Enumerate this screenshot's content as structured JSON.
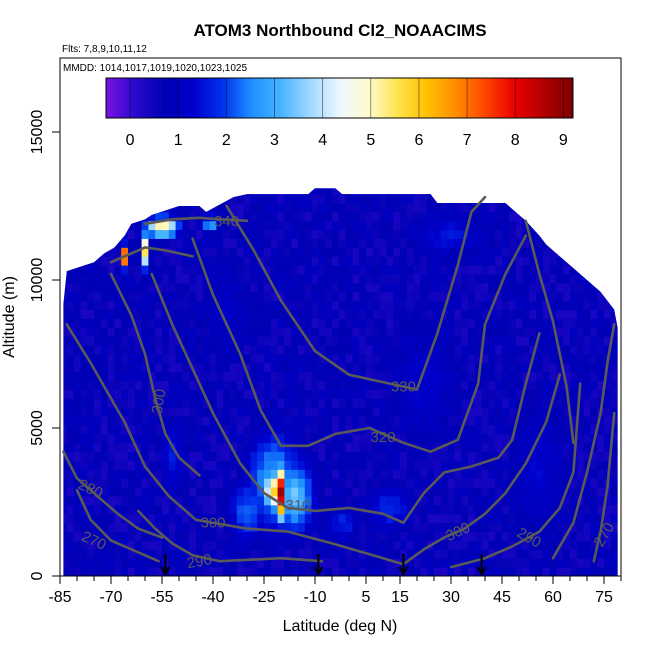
{
  "chart_data": {
    "type": "heatmap",
    "title": "ATOM3 Northbound Cl2_NOAACIMS",
    "subtitle_flights": "Flts: 7,8,9,10,11,12",
    "subtitle_dates": "MMDD: 1014,1017,1019,1020,1023,1025",
    "xlabel": "Latitude (deg N)",
    "ylabel": "Altitude (m)",
    "xlim": [
      -85,
      80
    ],
    "ylim": [
      0,
      17500
    ],
    "x_ticks": [
      -85,
      -70,
      -55,
      -40,
      -25,
      -10,
      5,
      15,
      30,
      45,
      60,
      75
    ],
    "x_tick_labels": [
      "-85",
      "-70",
      "-55",
      "-40",
      "-25",
      "-10",
      "5",
      "15",
      "30",
      "45",
      "60",
      "75"
    ],
    "y_ticks": [
      0,
      5000,
      10000,
      15000
    ],
    "y_tick_labels": [
      "0",
      "5000",
      "10000",
      "15000"
    ],
    "colorbar": {
      "min": -0.5,
      "max": 9.2,
      "ticks": [
        0,
        1,
        2,
        3,
        4,
        5,
        6,
        7,
        8,
        9
      ],
      "tick_labels": [
        "0",
        "1",
        "2",
        "3",
        "4",
        "5",
        "6",
        "7",
        "8",
        "9"
      ],
      "colors": [
        "#7a12e0",
        "#2a0acf",
        "#0000b3",
        "#0000cc",
        "#0033ee",
        "#1e90ff",
        "#48b4ff",
        "#9fd8ff",
        "#eef7ff",
        "#fffad0",
        "#ffe44d",
        "#ffc000",
        "#ff8c00",
        "#ff4500",
        "#e80000",
        "#b30000",
        "#7a0000"
      ]
    },
    "cell_width_deg": 2,
    "cell_height_m": 300,
    "background_value": 0.7,
    "domain_top": [
      [
        -84,
        9200
      ],
      [
        -83,
        10300
      ],
      [
        -75,
        10600
      ],
      [
        -72,
        10900
      ],
      [
        -69,
        11100
      ],
      [
        -66,
        11500
      ],
      [
        -64,
        11900
      ],
      [
        -60,
        12050
      ],
      [
        -58,
        12200
      ],
      [
        -50,
        12500
      ],
      [
        -44,
        12500
      ],
      [
        -42,
        12300
      ],
      [
        -34,
        12800
      ],
      [
        -30,
        12900
      ],
      [
        -12,
        12900
      ],
      [
        -10,
        13100
      ],
      [
        -4,
        13100
      ],
      [
        -2,
        12900
      ],
      [
        24,
        12900
      ],
      [
        26,
        12600
      ],
      [
        46,
        12600
      ],
      [
        48,
        12400
      ],
      [
        52,
        12000
      ],
      [
        56,
        11500
      ],
      [
        58,
        11200
      ],
      [
        62,
        10800
      ],
      [
        66,
        10400
      ],
      [
        70,
        10000
      ],
      [
        74,
        9600
      ],
      [
        78,
        9000
      ],
      [
        79,
        8400
      ],
      [
        79,
        0
      ]
    ],
    "hotspots": [
      {
        "lat": -66,
        "alt": 10800,
        "dlat": 1.2,
        "dalt": 350,
        "value": 8.5
      },
      {
        "lat": -60,
        "alt": 11000,
        "dlat": 1.5,
        "dalt": 600,
        "value": 5.5
      },
      {
        "lat": -55,
        "alt": 11800,
        "dlat": 5,
        "dalt": 350,
        "value": 5.4
      },
      {
        "lat": -41,
        "alt": 11900,
        "dlat": 3,
        "dalt": 300,
        "value": 2.8
      },
      {
        "lat": -20,
        "alt": 2800,
        "dlat": 1.5,
        "dalt": 900,
        "value": 8.8
      },
      {
        "lat": -22,
        "alt": 2900,
        "dlat": 3.5,
        "dalt": 700,
        "value": 5.8
      },
      {
        "lat": -22,
        "alt": 3200,
        "dlat": 9,
        "dalt": 1900,
        "value": 2.8
      },
      {
        "lat": -16,
        "alt": 2700,
        "dlat": 6,
        "dalt": 1300,
        "value": 3.4
      },
      {
        "lat": -30,
        "alt": 2200,
        "dlat": 6,
        "dalt": 1200,
        "value": 2.2
      },
      {
        "lat": 12,
        "alt": 2300,
        "dlat": 8,
        "dalt": 900,
        "value": 1.8
      },
      {
        "lat": -52,
        "alt": 4000,
        "dlat": 4,
        "dalt": 1500,
        "value": 1.6
      },
      {
        "lat": -2,
        "alt": 1800,
        "dlat": 6,
        "dalt": 700,
        "value": 1.7
      },
      {
        "lat": 22,
        "alt": 6500,
        "dlat": 12,
        "dalt": 2500,
        "value": 1.3
      },
      {
        "lat": 56,
        "alt": 3500,
        "dlat": 10,
        "dalt": 3000,
        "value": 1.3
      },
      {
        "lat": 30,
        "alt": 11500,
        "dlat": 14,
        "dalt": 900,
        "value": 1.5
      },
      {
        "lat": -36,
        "alt": 9000,
        "dlat": 8,
        "dalt": 2000,
        "value": 1.2
      },
      {
        "lat": 70,
        "alt": 6500,
        "dlat": 4,
        "dalt": 1500,
        "value": 0.2
      },
      {
        "lat": -82,
        "alt": 8200,
        "dlat": 2,
        "dalt": 1000,
        "value": 0.4
      }
    ],
    "contours": [
      {
        "label": "270",
        "label_at": [
          -75,
          1200
        ],
        "label_rot": 25,
        "points": [
          [
            -80,
            2900
          ],
          [
            -76,
            1900
          ],
          [
            -70,
            1200
          ],
          [
            -62,
            800
          ],
          [
            -56,
            500
          ]
        ]
      },
      {
        "label": "280",
        "label_at": [
          -76,
          2950
        ],
        "label_rot": 25,
        "points": [
          [
            -84,
            4200
          ],
          [
            -80,
            3300
          ],
          [
            -74,
            2700
          ],
          [
            -68,
            2100
          ],
          [
            -62,
            1600
          ],
          [
            -55,
            1300
          ]
        ]
      },
      {
        "label": "290",
        "label_at": [
          -44,
          500
        ],
        "label_rot": -10,
        "points": [
          [
            -62,
            2200
          ],
          [
            -57,
            1600
          ],
          [
            -52,
            1100
          ],
          [
            -46,
            700
          ],
          [
            -38,
            500
          ],
          [
            -20,
            600
          ],
          [
            -8,
            500
          ]
        ]
      },
      {
        "label": "290",
        "label_at": [
          53,
          1300
        ],
        "label_rot": 30,
        "points": [
          [
            30,
            300
          ],
          [
            40,
            600
          ],
          [
            48,
            1000
          ],
          [
            56,
            1500
          ],
          [
            62,
            2300
          ],
          [
            66,
            3500
          ],
          [
            68,
            6500
          ]
        ]
      },
      {
        "label": "270",
        "label_at": [
          75,
          1400
        ],
        "label_rot": -60,
        "points": [
          [
            72,
            500
          ],
          [
            74,
            1500
          ],
          [
            76,
            3000
          ],
          [
            78,
            5500
          ]
        ]
      },
      {
        "label": "300",
        "label_at": [
          -40,
          1800
        ],
        "label_rot": 0,
        "points": [
          [
            -83,
            8500
          ],
          [
            -76,
            7200
          ],
          [
            -66,
            5200
          ],
          [
            -60,
            3700
          ],
          [
            -53,
            2700
          ],
          [
            -45,
            1900
          ],
          [
            -30,
            1600
          ],
          [
            -18,
            1500
          ],
          [
            -5,
            1100
          ],
          [
            10,
            600
          ],
          [
            16,
            400
          ],
          [
            22,
            900
          ],
          [
            28,
            1300
          ],
          [
            34,
            1600
          ]
        ]
      },
      {
        "label": "300",
        "label_at": [
          -56,
          5900
        ],
        "label_rot": -80,
        "points": [
          [
            -70,
            10200
          ],
          [
            -64,
            8800
          ],
          [
            -60,
            7500
          ],
          [
            -57,
            6000
          ],
          [
            -54,
            4800
          ],
          [
            -50,
            4000
          ],
          [
            -44,
            3400
          ]
        ]
      },
      {
        "label": "300",
        "label_at": [
          32,
          1500
        ],
        "label_rot": -25,
        "points": [
          [
            34,
            1600
          ],
          [
            40,
            2100
          ],
          [
            46,
            2800
          ],
          [
            52,
            3800
          ],
          [
            58,
            5200
          ],
          [
            62,
            6800
          ]
        ]
      },
      {
        "label": "310",
        "label_at": [
          -15,
          2400
        ],
        "label_rot": 0,
        "points": [
          [
            -58,
            10200
          ],
          [
            -52,
            8500
          ],
          [
            -46,
            7000
          ],
          [
            -40,
            5500
          ],
          [
            -32,
            3800
          ],
          [
            -25,
            2800
          ],
          [
            -18,
            2300
          ],
          [
            -10,
            2200
          ],
          [
            0,
            2300
          ],
          [
            10,
            2100
          ],
          [
            16,
            1800
          ],
          [
            22,
            2800
          ],
          [
            28,
            3500
          ],
          [
            36,
            3700
          ],
          [
            44,
            4000
          ],
          [
            48,
            4600
          ],
          [
            52,
            6500
          ],
          [
            56,
            8200
          ]
        ]
      },
      {
        "label": "320",
        "label_at": [
          10,
          4700
        ],
        "label_rot": 0,
        "points": [
          [
            -46,
            11400
          ],
          [
            -40,
            9500
          ],
          [
            -32,
            7500
          ],
          [
            -26,
            5600
          ],
          [
            -20,
            4400
          ],
          [
            -12,
            4400
          ],
          [
            -4,
            4800
          ],
          [
            6,
            5000
          ],
          [
            16,
            4500
          ],
          [
            24,
            4200
          ],
          [
            32,
            4600
          ],
          [
            38,
            6500
          ],
          [
            40,
            8500
          ],
          [
            46,
            10200
          ],
          [
            52,
            11500
          ]
        ]
      },
      {
        "label": "330",
        "label_at": [
          16,
          6400
        ],
        "label_rot": 0,
        "points": [
          [
            -36,
            12500
          ],
          [
            -28,
            11000
          ],
          [
            -20,
            9300
          ],
          [
            -10,
            7600
          ],
          [
            0,
            6800
          ],
          [
            12,
            6500
          ],
          [
            20,
            6300
          ],
          [
            26,
            8200
          ],
          [
            32,
            10500
          ],
          [
            36,
            12300
          ],
          [
            40,
            12800
          ]
        ]
      },
      {
        "label": "340",
        "label_at": [
          -36,
          12000
        ],
        "label_rot": 0,
        "points": [
          [
            -60,
            11900
          ],
          [
            -52,
            12050
          ],
          [
            -44,
            12100
          ],
          [
            -38,
            12050
          ],
          [
            -30,
            12000
          ]
        ]
      },
      {
        "label": "",
        "label_at": null,
        "label_rot": 0,
        "points": [
          [
            -70,
            10600
          ],
          [
            -64,
            10900
          ],
          [
            -60,
            11100
          ],
          [
            -54,
            11000
          ],
          [
            -46,
            10800
          ]
        ]
      },
      {
        "label": "",
        "label_at": null,
        "label_rot": 0,
        "points": [
          [
            52,
            12000
          ],
          [
            56,
            10200
          ],
          [
            60,
            8600
          ],
          [
            64,
            6400
          ],
          [
            66,
            4500
          ]
        ]
      },
      {
        "label": "",
        "label_at": null,
        "label_rot": 0,
        "points": [
          [
            60,
            600
          ],
          [
            66,
            1800
          ],
          [
            70,
            3500
          ],
          [
            74,
            5500
          ],
          [
            76,
            7200
          ],
          [
            78,
            8500
          ]
        ]
      }
    ],
    "arrows_lat": [
      -54,
      -9,
      16,
      39
    ]
  }
}
